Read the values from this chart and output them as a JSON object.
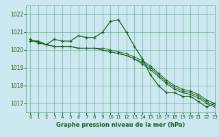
{
  "title": "Graphe pression niveau de la mer (hPa)",
  "background_color": "#cce8f0",
  "grid_color": "#55aa77",
  "line_color": "#1a5e1a",
  "xlim": [
    -0.5,
    23
  ],
  "ylim": [
    1016.5,
    1022.5
  ],
  "yticks": [
    1017,
    1018,
    1019,
    1020,
    1021,
    1022
  ],
  "xticks": [
    0,
    1,
    2,
    3,
    4,
    5,
    6,
    7,
    8,
    9,
    10,
    11,
    12,
    13,
    14,
    15,
    16,
    17,
    18,
    19,
    20,
    21,
    22,
    23
  ],
  "series": [
    [
      1020.6,
      1020.4,
      1020.3,
      1020.6,
      1020.5,
      1020.5,
      1020.8,
      1020.7,
      1020.7,
      1021.0,
      1021.6,
      1021.7,
      1021.0,
      1020.2,
      1019.5,
      1018.6,
      1018.0,
      1017.6,
      1017.6,
      1017.4,
      1017.4,
      1017.1,
      1016.8,
      1017.0
    ],
    [
      1020.5,
      1020.5,
      1020.3,
      1020.2,
      1020.2,
      1020.2,
      1020.1,
      1020.1,
      1020.1,
      1020.1,
      1020.0,
      1019.9,
      1019.8,
      1019.6,
      1019.4,
      1019.1,
      1018.7,
      1018.3,
      1018.0,
      1017.8,
      1017.7,
      1017.5,
      1017.2,
      1017.0
    ],
    [
      1020.5,
      1020.5,
      1020.3,
      1020.2,
      1020.2,
      1020.2,
      1020.1,
      1020.1,
      1020.1,
      1020.0,
      1019.9,
      1019.8,
      1019.7,
      1019.5,
      1019.3,
      1019.0,
      1018.6,
      1018.2,
      1017.9,
      1017.7,
      1017.6,
      1017.4,
      1017.1,
      1016.9
    ],
    [
      1020.5,
      1020.5,
      1020.3,
      1020.2,
      1020.2,
      1020.2,
      1020.1,
      1020.1,
      1020.1,
      1020.0,
      1019.9,
      1019.8,
      1019.7,
      1019.5,
      1019.2,
      1018.9,
      1018.5,
      1018.1,
      1017.8,
      1017.6,
      1017.5,
      1017.3,
      1017.0,
      1016.8
    ]
  ],
  "main_series_idx": 0,
  "marker": "+"
}
